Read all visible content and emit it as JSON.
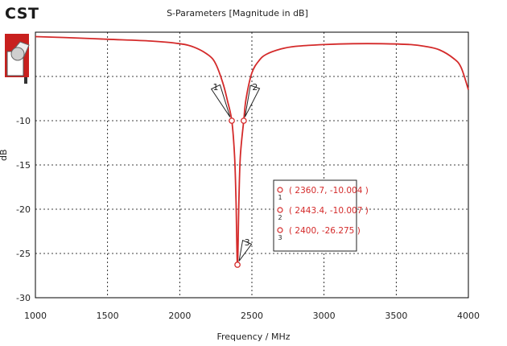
{
  "app": {
    "brand": "CST"
  },
  "colors": {
    "trace": "#d42a2a",
    "grid": "#000000",
    "marker_text": "#d42a2a"
  },
  "icons": {
    "logo": "cst-logo-icon"
  },
  "chart_data": {
    "type": "line",
    "title": "S-Parameters [Magnitude in dB]",
    "xlabel": "Frequency / MHz",
    "ylabel": "dB",
    "xlim": [
      1000,
      4000
    ],
    "ylim": [
      -30,
      0
    ],
    "x_ticks": [
      1000,
      1500,
      2000,
      2500,
      3000,
      3500,
      4000
    ],
    "x_tick_labels": [
      "1000",
      "1500",
      "2000",
      "2500",
      "3000",
      "3500",
      "4000"
    ],
    "y_ticks": [
      -30,
      -25,
      -20,
      -15,
      -10,
      -5
    ],
    "y_tick_labels": [
      "-30",
      "-25",
      "-20",
      "-15",
      "-10",
      ""
    ],
    "grid": true,
    "series": [
      {
        "x": [
          1000,
          1200,
          1500,
          1800,
          2000,
          2100,
          2200,
          2250,
          2300,
          2330,
          2360.7,
          2380,
          2390,
          2400,
          2410,
          2420,
          2443.4,
          2460,
          2500,
          2550,
          2600,
          2700,
          2800,
          3000,
          3200,
          3400,
          3600,
          3700,
          3800,
          3900,
          3950,
          4000
        ],
        "y": [
          -0.5,
          -0.6,
          -0.8,
          -1.0,
          -1.3,
          -1.7,
          -2.6,
          -3.6,
          -5.8,
          -7.7,
          -10.004,
          -14.0,
          -19.0,
          -26.275,
          -19.0,
          -14.0,
          -10.007,
          -7.5,
          -4.6,
          -3.2,
          -2.5,
          -1.9,
          -1.6,
          -1.4,
          -1.3,
          -1.3,
          -1.4,
          -1.6,
          -2.0,
          -3.0,
          -4.0,
          -6.5
        ]
      }
    ],
    "markers": [
      {
        "id": "1",
        "x": 2360.7,
        "y": -10.004,
        "label": "( 2360.7, -10.004 )"
      },
      {
        "id": "2",
        "x": 2443.4,
        "y": -10.007,
        "label": "( 2443.4, -10.007 )"
      },
      {
        "id": "3",
        "x": 2400,
        "y": -26.275,
        "label": "( 2400, -26.275 )"
      }
    ]
  }
}
